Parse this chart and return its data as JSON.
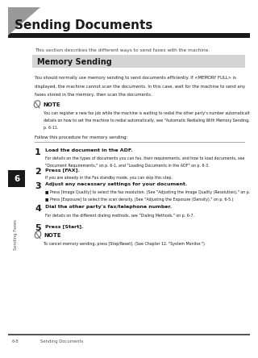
{
  "bg_color": "#ffffff",
  "title": "Sending Documents",
  "subtitle": "This section describes the different ways to send faxes with the machine.",
  "section_title": "Memory Sending",
  "section_bg": "#d4d4d4",
  "body_text_lines": [
    "You should normally use memory sending to send documents efficiently. If <MEMORY FULL> is",
    "displayed, the machine cannot scan the documents. In this case, wait for the machine to send any",
    "faxes stored in the memory, then scan the documents."
  ],
  "note_title": "NOTE",
  "note_body_lines": [
    "You can register a new fax job while the machine is waiting to redial the other party's number automatically. For",
    "details on how to set the machine to redial automatically, see \"Automatic Redialing With Memory Sending,\" on",
    "p. 6-11."
  ],
  "follow_text": "Follow this procedure for memory sending:",
  "steps": [
    {
      "num": "1",
      "bold": "Load the document in the ADF.",
      "detail_lines": [
        "For details on the types of documents you can fax, their requirements, and how to load documents, see",
        "\"Document Requirements,\" on p. 6-1, and \"Loading Documents in the ADF\" on p. 6-3."
      ]
    },
    {
      "num": "2",
      "bold": "Press [FAX].",
      "detail_lines": [
        "If you are already in the Fax standby mode, you can skip this step."
      ]
    },
    {
      "num": "3",
      "bold": "Adjust any necessary settings for your document.",
      "detail_lines": [
        "■ Press [Image Quality] to select the fax resolution. (See \"Adjusting the Image Quality (Resolution),\" on p. 6-4.)",
        "■ Press [Exposure] to select the scan density. (See \"Adjusting the Exposure (Density),\" on p. 6-5.)"
      ]
    },
    {
      "num": "4",
      "bold": "Dial the other party's fax/telephone number.",
      "detail_lines": [
        "For details on the different dialing methods, see \"Dialing Methods,\" on p. 6-7."
      ]
    },
    {
      "num": "5",
      "bold": "Press [Start].",
      "detail_lines": []
    }
  ],
  "final_note_title": "NOTE",
  "final_note_body": "To cancel memory sending, press [Stop/Reset]. (See Chapter 12, \"System Monitor.\")",
  "sidebar_label": "Sending Faxes",
  "sidebar_num": "6",
  "footer_left": "6-8",
  "footer_right": "Sending Documents",
  "text_color": "#1a1a1a",
  "gray_text": "#555555",
  "dark_color": "#1a1a1a",
  "tri_color": "#999999"
}
